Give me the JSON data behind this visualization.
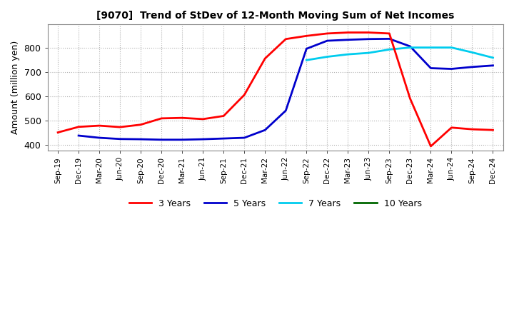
{
  "title": "[9070]  Trend of StDev of 12-Month Moving Sum of Net Incomes",
  "ylabel": "Amount (million yen)",
  "background_color": "#ffffff",
  "grid_color": "#b0b0b0",
  "ylim": [
    375,
    895
  ],
  "yticks": [
    400,
    500,
    600,
    700,
    800
  ],
  "legend": [
    "3 Years",
    "5 Years",
    "7 Years",
    "10 Years"
  ],
  "legend_colors": [
    "#ff0000",
    "#0000cc",
    "#00ccee",
    "#006600"
  ],
  "x_labels": [
    "Sep-19",
    "Dec-19",
    "Mar-20",
    "Jun-20",
    "Sep-20",
    "Dec-20",
    "Mar-21",
    "Jun-21",
    "Sep-21",
    "Dec-21",
    "Mar-22",
    "Jun-22",
    "Sep-22",
    "Dec-22",
    "Mar-23",
    "Jun-23",
    "Sep-23",
    "Dec-23",
    "Mar-24",
    "Jun-24",
    "Sep-24",
    "Dec-24"
  ],
  "series_3y": [
    450,
    473,
    478,
    472,
    482,
    508,
    510,
    505,
    518,
    605,
    755,
    835,
    848,
    858,
    862,
    862,
    858,
    590,
    393,
    470,
    463,
    460
  ],
  "series_5y": [
    null,
    437,
    428,
    423,
    422,
    420,
    420,
    422,
    425,
    428,
    460,
    540,
    795,
    828,
    832,
    835,
    836,
    805,
    715,
    712,
    720,
    726
  ],
  "series_7y": [
    null,
    null,
    null,
    null,
    null,
    null,
    null,
    null,
    null,
    null,
    null,
    null,
    748,
    762,
    772,
    778,
    792,
    800,
    800,
    800,
    780,
    758
  ],
  "series_10y": [
    null,
    null,
    null,
    null,
    null,
    null,
    null,
    null,
    null,
    null,
    null,
    null,
    null,
    null,
    null,
    null,
    null,
    null,
    null,
    null,
    null,
    null
  ]
}
